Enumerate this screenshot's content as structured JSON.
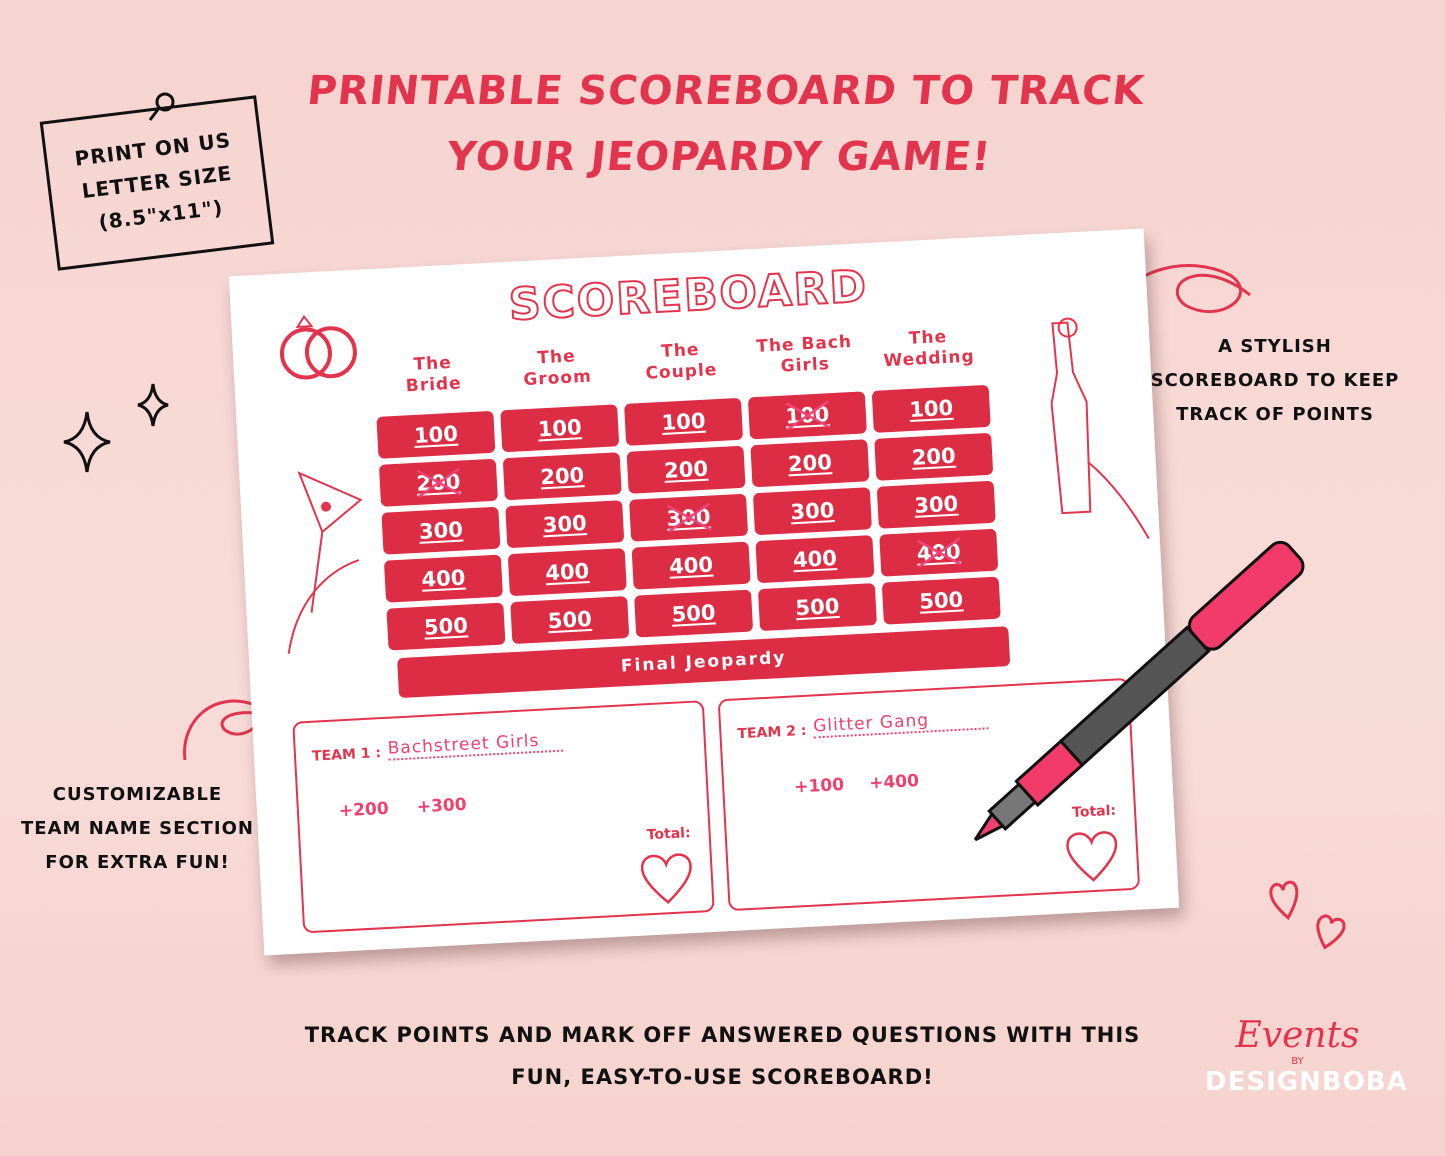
{
  "headline": {
    "line1": "Printable scoreboard to track",
    "line2": "your Jeopardy game!"
  },
  "note": {
    "line1": "Print on US",
    "line2": "letter size",
    "line3": "(8.5\"x11\")"
  },
  "callouts": {
    "right": [
      "A stylish",
      "scoreboard to keep",
      "track of points"
    ],
    "left": [
      "Customizable",
      "team name section",
      "for extra fun!"
    ]
  },
  "scoreboard": {
    "title": "SCOREBOARD",
    "categories": [
      [
        "The",
        "Bride"
      ],
      [
        "The",
        "Groom"
      ],
      [
        "The",
        "Couple"
      ],
      [
        "The Bach",
        "Girls"
      ],
      [
        "The",
        "Wedding"
      ]
    ],
    "values": [
      100,
      200,
      300,
      400,
      500
    ],
    "crossed_off": {
      "The Bride": [
        200
      ],
      "The Couple": [
        300
      ],
      "The Bach Girls": [
        100
      ],
      "The Wedding": [
        400
      ]
    },
    "final": "Final Jeopardy"
  },
  "teams": [
    {
      "label": "TEAM 1 :",
      "name": "Bachstreet Girls",
      "points": [
        "+200",
        "+300"
      ],
      "total_label": "Total:"
    },
    {
      "label": "TEAM 2 :",
      "name": "Glitter Gang",
      "points": [
        "+100",
        "+400"
      ],
      "total_label": "Total:"
    }
  ],
  "footer": {
    "line1": "Track points and mark off answered questions with this",
    "line2": "fun, easy-to-use scoreboard!"
  },
  "logo": {
    "script": "Events",
    "by": "BY",
    "brand": "DESIGNBOBA"
  },
  "colors": {
    "accent": "#e2344d",
    "cell": "#dc2d45",
    "marker": "#f0406e",
    "background": "#f7d6d2"
  }
}
